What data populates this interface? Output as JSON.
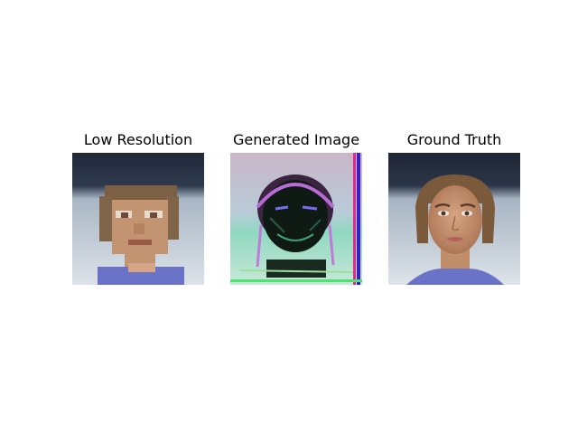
{
  "panels": [
    {
      "title": "Low Resolution",
      "image": "pixelated-face-photo"
    },
    {
      "title": "Generated Image",
      "image": "noisy-generated-face"
    },
    {
      "title": "Ground Truth",
      "image": "face-photo"
    }
  ],
  "colors": {
    "background": "#ffffff",
    "backdrop_dark": "#2a3140",
    "backdrop_light": "#cfd7df",
    "skin": "#c08f6a",
    "hair": "#7a5a3a",
    "shirt": "#6b73c9",
    "generated_dark": "#0f1a14",
    "generated_outline": "#b86bd6"
  }
}
